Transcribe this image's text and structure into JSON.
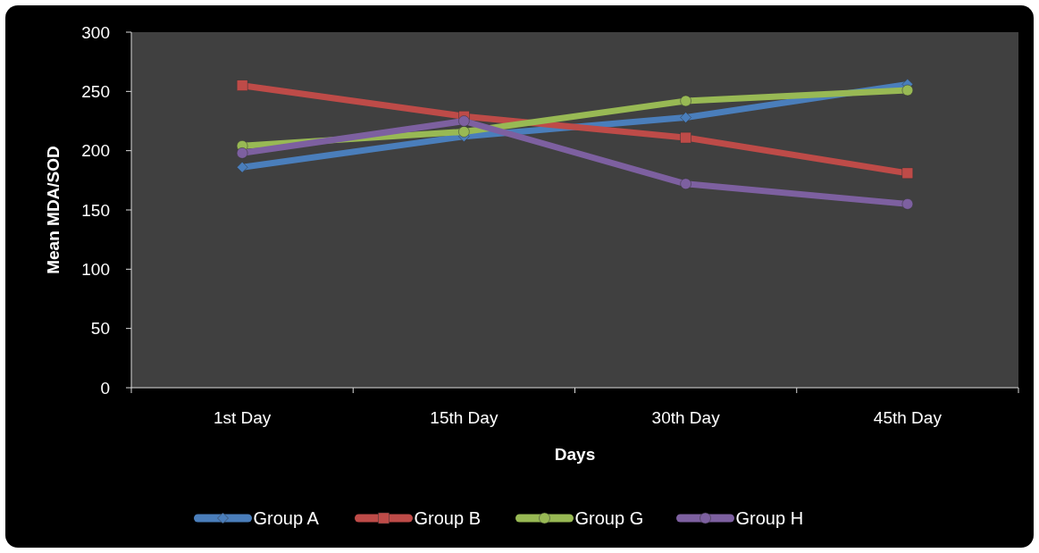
{
  "chart_data": {
    "type": "line",
    "xlabel": "Days",
    "ylabel": "Mean MDA/SOD",
    "categories": [
      "1st Day",
      "15th Day",
      "30th Day",
      "45th Day"
    ],
    "series": [
      {
        "name": "Group A",
        "color": "#4a7ebb",
        "marker": "diamond",
        "values": [
          186,
          212,
          228,
          256
        ]
      },
      {
        "name": "Group B",
        "color": "#be4b48",
        "marker": "square",
        "values": [
          255,
          229,
          211,
          181
        ]
      },
      {
        "name": "Group G",
        "color": "#98b954",
        "marker": "circle",
        "values": [
          204,
          216,
          242,
          251
        ]
      },
      {
        "name": "Group H",
        "color": "#7d60a0",
        "marker": "circle",
        "values": [
          198,
          225,
          172,
          155
        ]
      }
    ],
    "ylim": [
      0,
      300
    ],
    "yticks": [
      0,
      50,
      100,
      150,
      200,
      250,
      300
    ],
    "legend": "bottom",
    "grid": false
  }
}
